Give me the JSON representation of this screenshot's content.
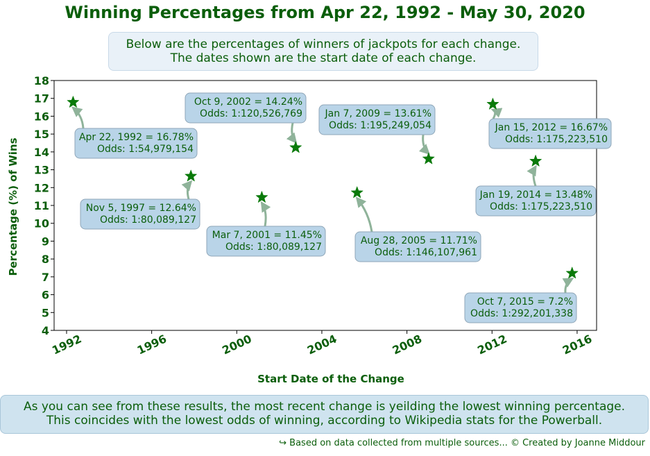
{
  "title": "Winning Percentages from Apr 22, 1992 - May 30, 2020",
  "subtitle": {
    "line1": "Below are the percentages of winners of jackpots for each change.",
    "line2": "The dates shown are the start date of each change."
  },
  "conclusion": {
    "line1": "As you can see from these results, the most recent change is yeilding the lowest winning percentage.",
    "line2": "This coincides with the lowest odds of winning, according to Wikipedia stats for the Powerball."
  },
  "footer": "↪ Based on data collected from multiple sources... © Created by Joanne Middour",
  "colors": {
    "text": "#0b5e0b",
    "marker": "#0a7a0a",
    "annotation_box": "#b9d4e8",
    "annotation_edge": "#8fa6b8",
    "arrow": "#8fb39a"
  },
  "chart_data": {
    "type": "scatter",
    "marker": "star",
    "xlabel": "Start Date of the Change",
    "ylabel": "Percentage (%) of Wins",
    "xlim": [
      "1991-06-01",
      "2016-12-01"
    ],
    "ylim": [
      4,
      18
    ],
    "yticks": [
      4,
      5,
      6,
      7,
      8,
      9,
      10,
      11,
      12,
      13,
      14,
      15,
      16,
      17,
      18
    ],
    "xticks": [
      "1992",
      "1996",
      "2000",
      "2004",
      "2008",
      "2012",
      "2016"
    ],
    "grid": false,
    "points": [
      {
        "date": "1992-04-22",
        "value": 16.78,
        "label1": "Apr 22, 1992 = 16.78%",
        "label2": "Odds: 1:54,979,154"
      },
      {
        "date": "1997-11-05",
        "value": 12.64,
        "label1": "Nov 5, 1997 = 12.64%",
        "label2": "Odds: 1:80,089,127"
      },
      {
        "date": "2001-03-07",
        "value": 11.45,
        "label1": "Mar 7, 2001 = 11.45%",
        "label2": "Odds: 1:80,089,127"
      },
      {
        "date": "2002-10-09",
        "value": 14.24,
        "label1": "Oct 9, 2002 = 14.24%",
        "label2": "Odds: 1:120,526,769"
      },
      {
        "date": "2005-08-28",
        "value": 11.71,
        "label1": "Aug 28, 2005 = 11.71%",
        "label2": "Odds: 1:146,107,961"
      },
      {
        "date": "2009-01-07",
        "value": 13.61,
        "label1": "Jan 7, 2009 = 13.61%",
        "label2": "Odds: 1:195,249,054"
      },
      {
        "date": "2012-01-15",
        "value": 16.67,
        "label1": "Jan 15, 2012 = 16.67%",
        "label2": "Odds: 1:175,223,510"
      },
      {
        "date": "2014-01-19",
        "value": 13.48,
        "label1": "Jan 19, 2014 = 13.48%",
        "label2": "Odds: 1:175,223,510"
      },
      {
        "date": "2015-10-07",
        "value": 7.2,
        "label1": "Oct 7, 2015 = 7.2%",
        "label2": "Odds: 1:292,201,338"
      }
    ]
  }
}
